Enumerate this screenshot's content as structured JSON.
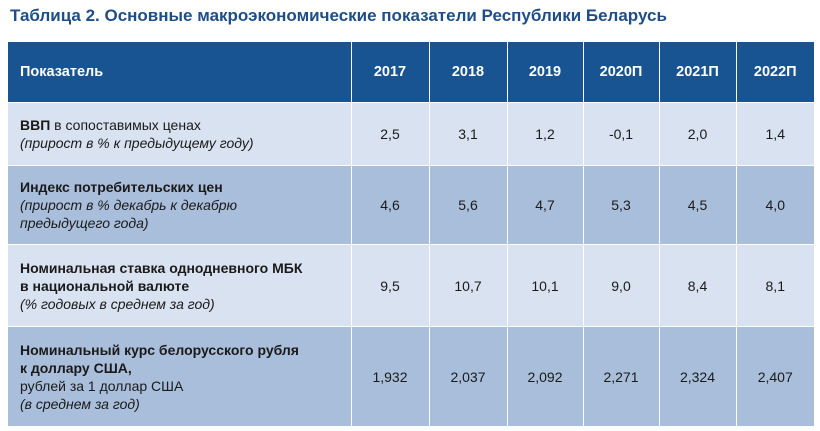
{
  "title": "Таблица 2. Основные макроэкономические показатели Республики Беларусь",
  "header": {
    "indicator": "Показатель",
    "years": [
      "2017",
      "2018",
      "2019",
      "2020П",
      "2021П",
      "2022П"
    ]
  },
  "rows": [
    {
      "name_bold": "ВВП",
      "name_normal": " в сопоставимых ценах",
      "note": "(прирост в % к предыдущему году)",
      "values": [
        "2,5",
        "3,1",
        "1,2",
        "-0,1",
        "2,0",
        "1,4"
      ]
    },
    {
      "name_bold": "Индекс потребительских цен",
      "note_line1": "(прирост в % декабрь к декабрю",
      "note_line2": "предыдущего года)",
      "values": [
        "4,6",
        "5,6",
        "4,7",
        "5,3",
        "4,5",
        "4,0"
      ]
    },
    {
      "name_line1": "Номинальная ставка однодневного МБК",
      "name_line2": "в национальной валюте",
      "note": "(% годовых в среднем за год)",
      "values": [
        "9,5",
        "10,7",
        "10,1",
        "9,0",
        "8,4",
        "8,1"
      ]
    },
    {
      "name_line1": "Номинальный курс белорусского рубля",
      "name_line2": "к доллару США,",
      "sub": "рублей за 1 доллар США",
      "note": "(в среднем за год)",
      "values": [
        "1,932",
        "2,037",
        "2,092",
        "2,271",
        "2,324",
        "2,407"
      ]
    }
  ]
}
